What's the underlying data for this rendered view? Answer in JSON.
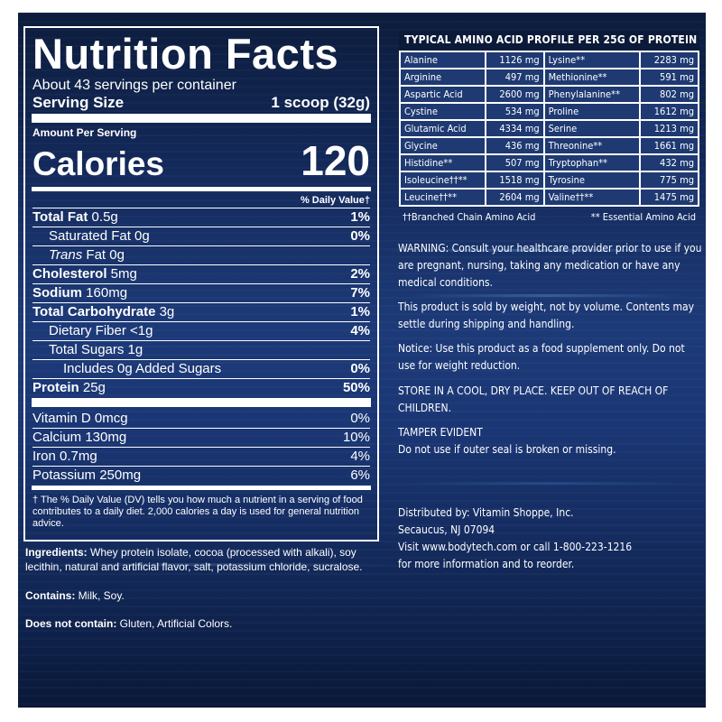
{
  "nutrition": {
    "title": "Nutrition Facts",
    "servings": "About 43 servings per container",
    "serving_size_label": "Serving Size",
    "serving_size_value": "1 scoop (32g)",
    "amount_per_serving": "Amount Per Serving",
    "calories_label": "Calories",
    "calories_value": "120",
    "dv_header": "% Daily Value†",
    "nutrients": [
      {
        "bold": "Total Fat",
        "amount": " 0.5g",
        "pct": "1%"
      },
      {
        "bold": "",
        "amount": "Saturated Fat 0g",
        "pct": "0%"
      },
      {
        "italic": "Trans",
        "amount": " Fat 0g",
        "pct": ""
      },
      {
        "bold": "Cholesterol",
        "amount": " 5mg",
        "pct": "2%"
      },
      {
        "bold": "Sodium",
        "amount": " 160mg",
        "pct": "7%"
      },
      {
        "bold": "Total Carbohydrate",
        "amount": " 3g",
        "pct": "1%"
      },
      {
        "bold": "",
        "amount": "Dietary Fiber <1g",
        "pct": "4%"
      },
      {
        "bold": "",
        "amount": "Total Sugars 1g",
        "pct": ""
      },
      {
        "bold": "",
        "amount": "Includes 0g Added Sugars",
        "pct": "0%"
      },
      {
        "bold": "Protein",
        "amount": " 25g",
        "pct": "50%"
      }
    ],
    "vitamins": [
      {
        "label": "Vitamin D 0mcg",
        "pct": "0%"
      },
      {
        "label": "Calcium 130mg",
        "pct": "10%"
      },
      {
        "label": "Iron 0.7mg",
        "pct": "4%"
      },
      {
        "label": "Potassium 250mg",
        "pct": "6%"
      }
    ],
    "footnote": "† The % Daily Value (DV) tells you how much a nutrient in a serving of food contributes to a daily diet. 2,000 calories a day is used for general nutrition advice."
  },
  "ingredients": {
    "label": "Ingredients:",
    "text": " Whey protein isolate, cocoa (processed with alkali), soy lecithin, natural and artificial flavor, salt, potassium chloride, sucralose."
  },
  "contains": {
    "label": "Contains:",
    "text": " Milk, Soy."
  },
  "does_not_contain": {
    "label": "Does not contain:",
    "text": " Gluten, Artificial Colors."
  },
  "amino": {
    "title": "TYPICAL AMINO ACID PROFILE PER 25G OF PROTEIN",
    "rows": [
      [
        "Alanine",
        "1126 mg",
        "Lysine**",
        "2283 mg"
      ],
      [
        "Arginine",
        "497 mg",
        "Methionine**",
        "591 mg"
      ],
      [
        "Aspartic Acid",
        "2600 mg",
        "Phenylalanine**",
        "802 mg"
      ],
      [
        "Cystine",
        "534 mg",
        "Proline",
        "1612 mg"
      ],
      [
        "Glutamic Acid",
        "4334 mg",
        "Serine",
        "1213 mg"
      ],
      [
        "Glycine",
        "436 mg",
        "Threonine**",
        "1661 mg"
      ],
      [
        "Histidine**",
        "507 mg",
        "Tryptophan**",
        "432 mg"
      ],
      [
        "Isoleucine††**",
        "1518 mg",
        "Tyrosine",
        "775 mg"
      ],
      [
        "Leucine††**",
        "2604 mg",
        "Valine††**",
        "1475 mg"
      ]
    ],
    "legend_left": "††Branched Chain Amino Acid",
    "legend_right": "** Essential Amino Acid"
  },
  "warning": "WARNING: Consult your healthcare provider prior to use if you are pregnant, nursing, taking any medication or have any medical conditions.",
  "weight_notice": "This product is sold by weight, not by volume. Contents may settle during shipping and handling.",
  "notice": "Notice: Use this product as a food supplement only. Do not use for weight reduction.",
  "store": "STORE IN A COOL, DRY PLACE. KEEP OUT OF REACH OF CHILDREN.",
  "tamper_title": "TAMPER EVIDENT",
  "tamper_text": "Do not use if outer seal is broken or missing.",
  "distributor": {
    "line1": "Distributed by: Vitamin Shoppe, Inc.",
    "line2": "Secaucus, NJ 07094",
    "line3": "Visit www.bodytech.com or call 1-800-223-1216",
    "line4": "for more information and to reorder."
  }
}
